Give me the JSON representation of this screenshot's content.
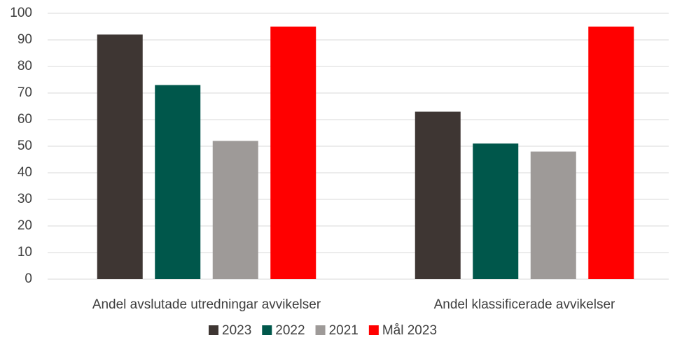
{
  "chart_data": {
    "type": "bar",
    "categories": [
      "Andel avslutade utredningar avvikelser",
      "Andel klassificerade avvikelser"
    ],
    "series": [
      {
        "name": "2023",
        "color": "#3e3633",
        "values": [
          92,
          63
        ]
      },
      {
        "name": "2022",
        "color": "#00574b",
        "values": [
          73,
          51
        ]
      },
      {
        "name": "2021",
        "color": "#9e9a98",
        "values": [
          52,
          48
        ]
      },
      {
        "name": "Mål 2023",
        "color": "#ff0000",
        "values": [
          95,
          95
        ]
      }
    ],
    "ylim": [
      0,
      100
    ],
    "yticks": [
      0,
      10,
      20,
      30,
      40,
      50,
      60,
      70,
      80,
      90,
      100
    ],
    "grid": true,
    "legend": "bottom"
  }
}
